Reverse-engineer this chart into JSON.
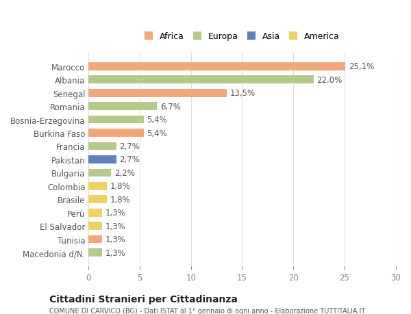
{
  "countries": [
    "Marocco",
    "Albania",
    "Senegal",
    "Romania",
    "Bosnia-Erzegovina",
    "Burkina Faso",
    "Francia",
    "Pakistan",
    "Bulgaria",
    "Colombia",
    "Brasile",
    "Perù",
    "El Salvador",
    "Tunisia",
    "Macedonia d/N."
  ],
  "values": [
    25.1,
    22.0,
    13.5,
    6.7,
    5.4,
    5.4,
    2.7,
    2.7,
    2.2,
    1.8,
    1.8,
    1.3,
    1.3,
    1.3,
    1.3
  ],
  "labels": [
    "25,1%",
    "22,0%",
    "13,5%",
    "6,7%",
    "5,4%",
    "5,4%",
    "2,7%",
    "2,7%",
    "2,2%",
    "1,8%",
    "1,8%",
    "1,3%",
    "1,3%",
    "1,3%",
    "1,3%"
  ],
  "continents": [
    "Africa",
    "Europa",
    "Africa",
    "Europa",
    "Europa",
    "Africa",
    "Europa",
    "Asia",
    "Europa",
    "America",
    "America",
    "America",
    "America",
    "Africa",
    "Europa"
  ],
  "colors": {
    "Africa": "#F0A878",
    "Europa": "#B5C98A",
    "Asia": "#6080C0",
    "America": "#F0D060"
  },
  "legend_order": [
    "Africa",
    "Europa",
    "Asia",
    "America"
  ],
  "xlim": [
    0,
    30
  ],
  "xticks": [
    0,
    5,
    10,
    15,
    20,
    25,
    30
  ],
  "title": "Cittadini Stranieri per Cittadinanza",
  "subtitle": "COMUNE DI CARVICO (BG) - Dati ISTAT al 1° gennaio di ogni anno - Elaborazione TUTTITALIA.IT",
  "bg_color": "#ffffff",
  "grid_color": "#dddddd"
}
